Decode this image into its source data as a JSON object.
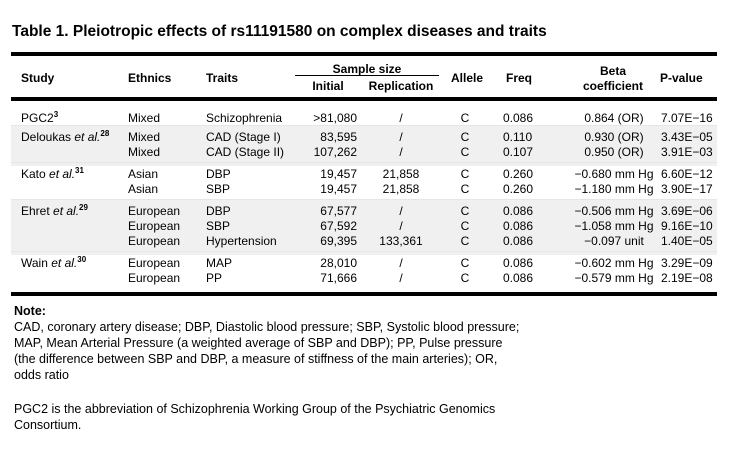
{
  "title": "Table 1. Pleiotropic effects of rs11191580 on complex diseases and traits",
  "headers": {
    "study": "Study",
    "ethnics": "Ethnics",
    "traits": "Traits",
    "sample_size": "Sample size",
    "initial": "Initial",
    "replication": "Replication",
    "allele": "Allele",
    "freq": "Freq",
    "beta_line1": "Beta",
    "beta_line2": "coefficient",
    "pvalue": "P-value"
  },
  "groups": [
    {
      "study": {
        "name": "PGC2",
        "etal": "",
        "ref": "3"
      },
      "shaded": false,
      "rows": [
        {
          "ethnics": "Mixed",
          "trait": "Schizophrenia",
          "initial": ">81,080",
          "replication": "/",
          "allele": "C",
          "freq": "0.086",
          "beta": "0.864 (OR)",
          "pvalue": "7.07E−16"
        }
      ]
    },
    {
      "study": {
        "name": "Deloukas ",
        "etal": "et al.",
        "ref": "28"
      },
      "shaded": true,
      "rows": [
        {
          "ethnics": "Mixed",
          "trait": "CAD (Stage I)",
          "initial": "83,595",
          "replication": "/",
          "allele": "C",
          "freq": "0.110",
          "beta": "0.930 (OR)",
          "pvalue": "3.43E−05"
        },
        {
          "ethnics": "Mixed",
          "trait": "CAD (Stage II)",
          "initial": "107,262",
          "replication": "/",
          "allele": "C",
          "freq": "0.107",
          "beta": "0.950 (OR)",
          "pvalue": "3.91E−03"
        }
      ]
    },
    {
      "study": {
        "name": "Kato ",
        "etal": "et al.",
        "ref": "31"
      },
      "shaded": false,
      "rows": [
        {
          "ethnics": "Asian",
          "trait": "DBP",
          "initial": "19,457",
          "replication": "21,858",
          "allele": "C",
          "freq": "0.260",
          "beta": "−0.680 mm Hg",
          "pvalue": "6.60E−12"
        },
        {
          "ethnics": "Asian",
          "trait": "SBP",
          "initial": "19,457",
          "replication": "21,858",
          "allele": "C",
          "freq": "0.260",
          "beta": "−1.180 mm Hg",
          "pvalue": "3.90E−17"
        }
      ]
    },
    {
      "study": {
        "name": "Ehret ",
        "etal": "et al.",
        "ref": "29"
      },
      "shaded": true,
      "rows": [
        {
          "ethnics": "European",
          "trait": "DBP",
          "initial": "67,577",
          "replication": "/",
          "allele": "C",
          "freq": "0.086",
          "beta": "−0.506 mm Hg",
          "pvalue": "3.69E−06"
        },
        {
          "ethnics": "European",
          "trait": "SBP",
          "initial": "67,592",
          "replication": "/",
          "allele": "C",
          "freq": "0.086",
          "beta": "−1.058 mm Hg",
          "pvalue": "9.16E−10"
        },
        {
          "ethnics": "European",
          "trait": "Hypertension",
          "initial": "69,395",
          "replication": "133,361",
          "allele": "C",
          "freq": "0.086",
          "beta": "−0.097 unit",
          "pvalue": "1.40E−05"
        }
      ]
    },
    {
      "study": {
        "name": "Wain ",
        "etal": "et al.",
        "ref": "30"
      },
      "shaded": false,
      "rows": [
        {
          "ethnics": "European",
          "trait": "MAP",
          "initial": "28,010",
          "replication": "/",
          "allele": "C",
          "freq": "0.086",
          "beta": "−0.602 mm Hg",
          "pvalue": "3.29E−09"
        },
        {
          "ethnics": "European",
          "trait": "PP",
          "initial": "71,666",
          "replication": "/",
          "allele": "C",
          "freq": "0.086",
          "beta": "−0.579 mm Hg",
          "pvalue": "2.19E−08"
        }
      ]
    }
  ],
  "note": {
    "heading": "Note:",
    "lines": [
      "CAD, coronary artery disease; DBP,  Diastolic blood pressure; SBP, Systolic blood pressure;",
      "MAP, Mean Arterial Pressure (a weighted average of SBP and DBP); PP,  Pulse pressure",
      "(the difference between SBP and DBP,  a measure of stiffness of the main arteries); OR,",
      "odds ratio"
    ],
    "pgc2_lines": [
      "PGC2 is the abbreviation  of Schizophrenia Working Group of the Psychiatric Genomics",
      "Consortium."
    ]
  },
  "colors": {
    "shade": "#f0f0f0",
    "rule": "#000000"
  }
}
